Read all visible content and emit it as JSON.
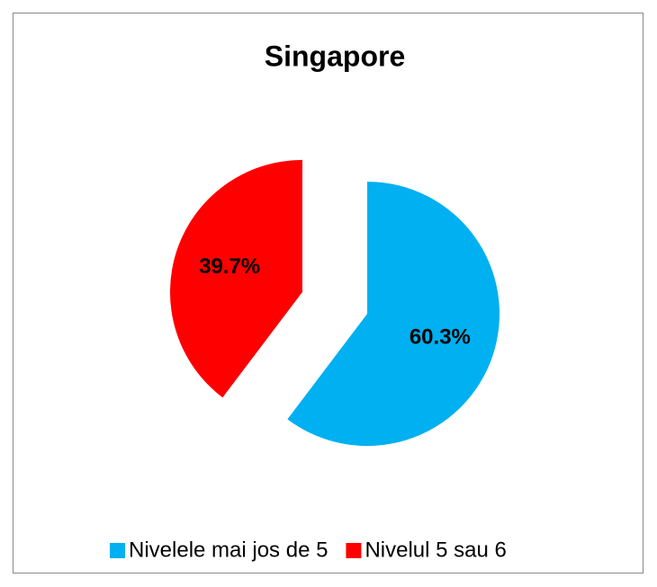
{
  "chart_data": {
    "type": "pie",
    "title": "Singapore",
    "categories": [
      "Nivelele mai jos de 5",
      "Nivelul 5 sau 6"
    ],
    "values": [
      60.3,
      39.7
    ],
    "value_labels": [
      "60.3%",
      "39.7%"
    ],
    "colors": [
      "#00b0f0",
      "#ff0000"
    ],
    "legend": "bottom",
    "exploded": true
  }
}
